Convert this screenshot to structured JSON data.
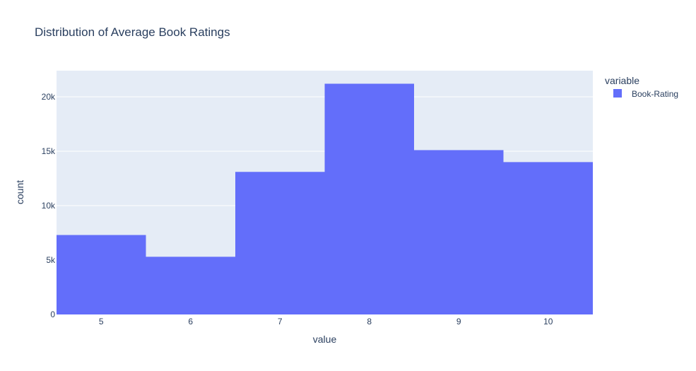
{
  "chart_data": {
    "type": "bar",
    "title": "Distribution of Average Book Ratings",
    "xlabel": "value",
    "ylabel": "count",
    "categories": [
      5,
      6,
      7,
      8,
      9,
      10
    ],
    "series": [
      {
        "name": "Book-Rating",
        "values": [
          7300,
          5300,
          13100,
          21200,
          15100,
          14000
        ]
      }
    ],
    "ylim": [
      0,
      22400
    ],
    "xlim": [
      4.5,
      10.5
    ],
    "y_ticks": [
      0,
      5000,
      10000,
      15000,
      20000
    ],
    "y_tick_labels": [
      "0",
      "5k",
      "10k",
      "15k",
      "20k"
    ],
    "legend_title": "variable",
    "legend_position": "top-right",
    "grid": true,
    "colors": {
      "bar": "#636efa",
      "plot_bg": "#e5ecf6",
      "grid": "#ffffff",
      "text": "#2a3f5f"
    }
  }
}
